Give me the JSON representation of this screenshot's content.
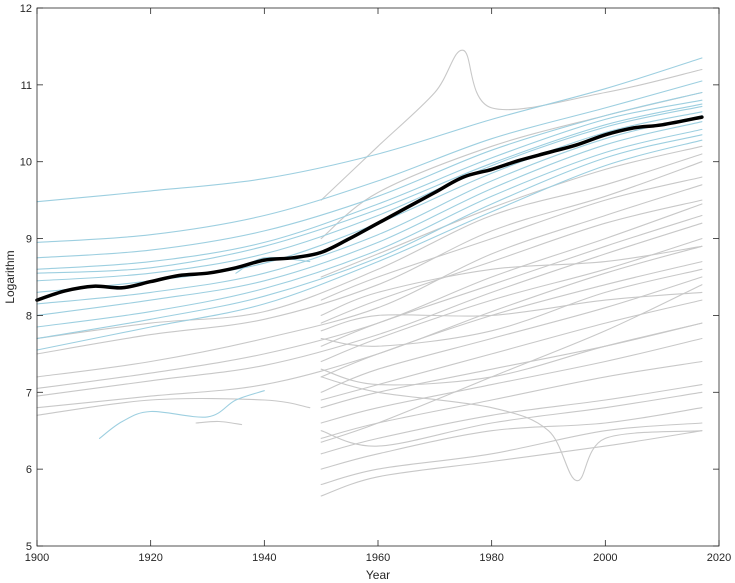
{
  "chart_data": {
    "type": "line",
    "title": "",
    "xlabel": "Year",
    "ylabel": "Logarithm",
    "xlim": [
      1900,
      2020
    ],
    "ylim": [
      5,
      12
    ],
    "xticks": [
      1900,
      1920,
      1940,
      1960,
      1980,
      2000,
      2020
    ],
    "yticks": [
      5,
      6,
      7,
      8,
      9,
      10,
      11,
      12
    ],
    "grid": false,
    "legend": "none",
    "colors": {
      "mean": "#000000",
      "blue_series": "#9dcfe0",
      "gray_series": "#c8c8c8"
    },
    "mean_series": {
      "x": [
        1900,
        1905,
        1910,
        1915,
        1920,
        1925,
        1930,
        1935,
        1940,
        1945,
        1950,
        1955,
        1960,
        1965,
        1970,
        1975,
        1980,
        1985,
        1990,
        1995,
        2000,
        2005,
        2010,
        2017
      ],
      "values": [
        8.2,
        8.32,
        8.38,
        8.36,
        8.44,
        8.52,
        8.55,
        8.62,
        8.72,
        8.75,
        8.82,
        9.0,
        9.2,
        9.4,
        9.6,
        9.8,
        9.9,
        10.02,
        10.12,
        10.22,
        10.35,
        10.44,
        10.48,
        10.58
      ]
    },
    "blue_series": [
      {
        "x": [
          1900,
          1920,
          1940,
          1960,
          1980,
          2000,
          2017
        ],
        "values": [
          9.48,
          9.62,
          9.78,
          10.1,
          10.55,
          10.95,
          11.35
        ]
      },
      {
        "x": [
          1900,
          1920,
          1940,
          1960,
          1980,
          2000,
          2017
        ],
        "values": [
          8.95,
          9.05,
          9.3,
          9.75,
          10.3,
          10.7,
          11.05
        ]
      },
      {
        "x": [
          1900,
          1920,
          1940,
          1960,
          1980,
          2000,
          2017
        ],
        "values": [
          8.75,
          8.85,
          9.1,
          9.55,
          10.15,
          10.6,
          10.9
        ]
      },
      {
        "x": [
          1900,
          1920,
          1940,
          1960,
          1980,
          2000,
          2017
        ],
        "values": [
          8.6,
          8.7,
          8.95,
          9.45,
          10.05,
          10.55,
          10.8
        ]
      },
      {
        "x": [
          1900,
          1920,
          1940,
          1960,
          1980,
          2000,
          2017
        ],
        "values": [
          8.45,
          8.55,
          8.8,
          9.3,
          9.95,
          10.45,
          10.72
        ]
      },
      {
        "x": [
          1900,
          1920,
          1940,
          1960,
          1980,
          2000,
          2017
        ],
        "values": [
          8.3,
          8.45,
          8.68,
          9.2,
          9.85,
          10.38,
          10.65
        ]
      },
      {
        "x": [
          1900,
          1920,
          1940,
          1960,
          1980,
          2000,
          2017
        ],
        "values": [
          8.15,
          8.3,
          8.55,
          9.05,
          9.75,
          10.3,
          10.6
        ]
      },
      {
        "x": [
          1900,
          1920,
          1940,
          1960,
          1980,
          2000,
          2017
        ],
        "values": [
          8.0,
          8.2,
          8.45,
          8.95,
          9.65,
          10.22,
          10.52
        ]
      },
      {
        "x": [
          1900,
          1920,
          1940,
          1960,
          1980,
          2000,
          2017
        ],
        "values": [
          7.85,
          8.05,
          8.35,
          8.85,
          9.55,
          10.12,
          10.42
        ]
      },
      {
        "x": [
          1900,
          1920,
          1940,
          1960,
          1980,
          2000,
          2017
        ],
        "values": [
          7.7,
          7.95,
          8.25,
          8.75,
          9.45,
          10.05,
          10.35
        ]
      },
      {
        "x": [
          1900,
          1920,
          1940,
          1960,
          1980,
          2000,
          2017
        ],
        "values": [
          7.55,
          7.85,
          8.15,
          8.7,
          9.35,
          9.95,
          10.28
        ]
      },
      {
        "x": [
          1900,
          1920,
          1940,
          1960,
          1980,
          2000,
          2017
        ],
        "values": [
          8.55,
          8.62,
          8.9,
          9.38,
          9.98,
          10.48,
          10.75
        ]
      },
      {
        "x": [
          1911,
          1915,
          1920,
          1930,
          1935,
          1940
        ],
        "values": [
          6.4,
          6.62,
          6.75,
          6.68,
          6.9,
          7.02
        ]
      },
      {
        "x": [
          1935,
          1940,
          1948
        ],
        "values": [
          8.55,
          8.75,
          8.7
        ]
      }
    ],
    "gray_series": [
      {
        "x": [
          1900,
          1920,
          1940,
          1960,
          1980,
          2000,
          2017
        ],
        "values": [
          7.7,
          7.9,
          8.05,
          8.6,
          9.3,
          9.7,
          10.1
        ]
      },
      {
        "x": [
          1900,
          1920,
          1940,
          1960,
          1980,
          2000,
          2017
        ],
        "values": [
          7.5,
          7.75,
          7.95,
          8.4,
          9.1,
          9.55,
          10.0
        ]
      },
      {
        "x": [
          1900,
          1920,
          1940,
          1960,
          1980,
          2000,
          2017
        ],
        "values": [
          7.2,
          7.4,
          7.7,
          8.1,
          8.8,
          9.3,
          9.7
        ]
      },
      {
        "x": [
          1900,
          1920,
          1940,
          1960,
          1980,
          2000,
          2017
        ],
        "values": [
          7.05,
          7.25,
          7.5,
          7.9,
          8.5,
          9.0,
          9.45
        ]
      },
      {
        "x": [
          1900,
          1920,
          1940,
          1960,
          1980,
          2000,
          2017
        ],
        "values": [
          6.95,
          7.15,
          7.35,
          7.75,
          8.3,
          8.8,
          9.2
        ]
      },
      {
        "x": [
          1900,
          1920,
          1940,
          1960,
          1980,
          2000,
          2017
        ],
        "values": [
          6.8,
          6.95,
          7.1,
          7.5,
          8.05,
          8.55,
          8.9
        ]
      },
      {
        "x": [
          1900,
          1920,
          1940,
          1948
        ],
        "values": [
          6.7,
          6.9,
          6.9,
          6.8
        ]
      },
      {
        "x": [
          1928,
          1932,
          1936
        ],
        "values": [
          6.6,
          6.62,
          6.58
        ]
      },
      {
        "x": [
          1950,
          1960,
          1970,
          1975,
          1980,
          2000,
          2017
        ],
        "values": [
          9.5,
          10.2,
          10.9,
          11.45,
          10.7,
          10.9,
          11.2
        ]
      },
      {
        "x": [
          1950,
          1960,
          1980,
          2000,
          2017
        ],
        "values": [
          9.0,
          9.6,
          10.2,
          10.6,
          10.9
        ]
      },
      {
        "x": [
          1950,
          1960,
          1980,
          2000,
          2017
        ],
        "values": [
          8.5,
          8.8,
          9.4,
          9.9,
          10.2
        ]
      },
      {
        "x": [
          1950,
          1960,
          1980,
          2000,
          2017
        ],
        "values": [
          8.2,
          8.5,
          9.0,
          9.5,
          9.8
        ]
      },
      {
        "x": [
          1950,
          1960,
          1980,
          2000,
          2017
        ],
        "values": [
          7.9,
          8.2,
          8.7,
          9.2,
          9.5
        ]
      },
      {
        "x": [
          1950,
          1960,
          1980,
          2000,
          2017
        ],
        "values": [
          7.6,
          7.9,
          8.4,
          8.9,
          9.3
        ]
      },
      {
        "x": [
          1950,
          1960,
          1980,
          2000,
          2017
        ],
        "values": [
          7.4,
          7.7,
          8.2,
          8.6,
          9.0
        ]
      },
      {
        "x": [
          1950,
          1960,
          1980,
          2000,
          2017
        ],
        "values": [
          7.2,
          7.5,
          8.0,
          8.4,
          8.7
        ]
      },
      {
        "x": [
          1950,
          1960,
          1980,
          2000,
          2017
        ],
        "values": [
          7.0,
          7.3,
          7.7,
          8.1,
          8.5
        ]
      },
      {
        "x": [
          1950,
          1960,
          1980,
          2000,
          2017
        ],
        "values": [
          6.9,
          7.1,
          7.5,
          7.9,
          8.2
        ]
      },
      {
        "x": [
          1950,
          1960,
          1980,
          2000,
          2017
        ],
        "values": [
          6.8,
          7.0,
          7.3,
          7.6,
          7.9
        ]
      },
      {
        "x": [
          1950,
          1960,
          1980,
          2000,
          2017
        ],
        "values": [
          6.6,
          6.8,
          7.1,
          7.4,
          7.7
        ]
      },
      {
        "x": [
          1950,
          1960,
          1980,
          2000,
          2017
        ],
        "values": [
          6.4,
          6.6,
          6.9,
          7.2,
          7.4
        ]
      },
      {
        "x": [
          1950,
          1960,
          1980,
          2000,
          2017
        ],
        "values": [
          6.2,
          6.4,
          6.7,
          6.9,
          7.1
        ]
      },
      {
        "x": [
          1950,
          1960,
          1980,
          2000,
          2017
        ],
        "values": [
          6.0,
          6.2,
          6.5,
          6.6,
          6.8
        ]
      },
      {
        "x": [
          1950,
          1960,
          1980,
          2000,
          2017
        ],
        "values": [
          5.8,
          6.0,
          6.2,
          6.5,
          6.6
        ]
      },
      {
        "x": [
          1950,
          1960,
          1980,
          2000,
          2017
        ],
        "values": [
          5.65,
          5.9,
          6.1,
          6.3,
          6.5
        ]
      },
      {
        "x": [
          1950,
          1960,
          1980,
          1990,
          1995,
          2000,
          2017
        ],
        "values": [
          7.2,
          7.0,
          6.8,
          6.5,
          5.85,
          6.4,
          6.5
        ]
      },
      {
        "x": [
          1950,
          1960,
          1980,
          2000,
          2017
        ],
        "values": [
          8.0,
          8.3,
          8.6,
          8.7,
          8.9
        ]
      },
      {
        "x": [
          1950,
          1960,
          1980,
          2000,
          2017
        ],
        "values": [
          7.7,
          7.6,
          7.8,
          8.3,
          8.6
        ]
      },
      {
        "x": [
          1950,
          1960,
          1980,
          2000,
          2017
        ],
        "values": [
          7.3,
          7.1,
          7.2,
          7.6,
          7.9
        ]
      },
      {
        "x": [
          1950,
          1960,
          1980,
          2000,
          2017
        ],
        "values": [
          6.5,
          6.3,
          6.6,
          6.8,
          7.0
        ]
      },
      {
        "x": [
          1950,
          1960,
          1980,
          2000,
          2017
        ],
        "values": [
          6.35,
          6.6,
          7.2,
          7.8,
          8.4
        ]
      },
      {
        "x": [
          1950,
          1960,
          1980,
          2000,
          2017
        ],
        "values": [
          7.8,
          8.0,
          8.0,
          8.2,
          8.3
        ]
      }
    ]
  }
}
